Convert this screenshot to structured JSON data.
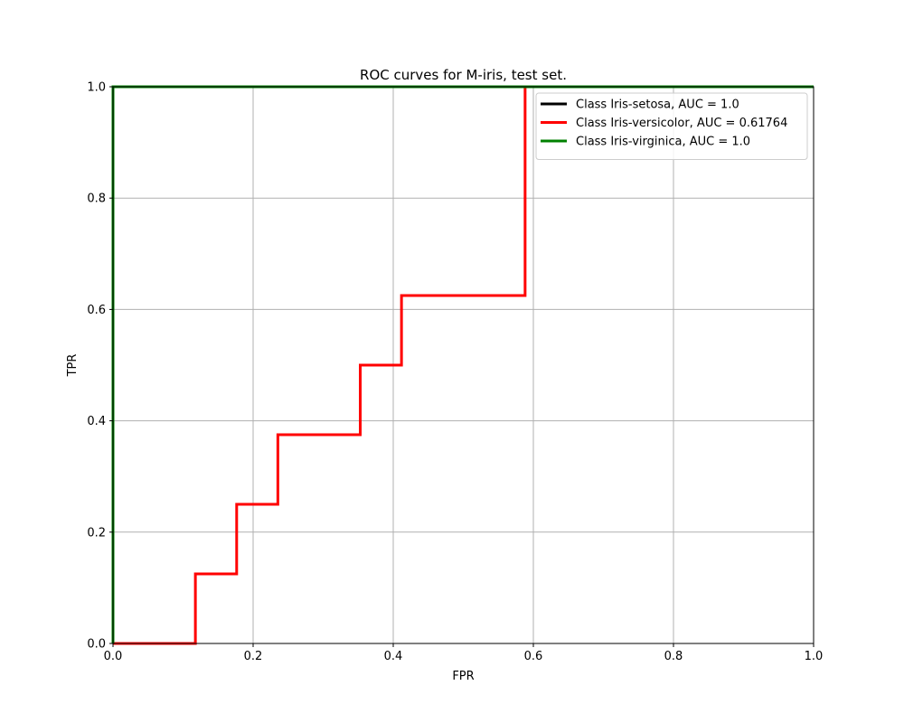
{
  "chart_data": {
    "type": "line",
    "title": "ROC curves for M-iris, test set.",
    "xlabel": "FPR",
    "ylabel": "TPR",
    "xlim": [
      0.0,
      1.0
    ],
    "ylim": [
      0.0,
      1.0
    ],
    "xticks": [
      "0.0",
      "0.2",
      "0.4",
      "0.6",
      "0.8",
      "1.0"
    ],
    "yticks": [
      "0.0",
      "0.2",
      "0.4",
      "0.6",
      "0.8",
      "1.0"
    ],
    "grid": true,
    "legend_position": "top-right",
    "series": [
      {
        "name": "Class Iris-setosa, AUC = 1.0",
        "color": "#000000",
        "x": [
          0.0,
          0.0,
          1.0
        ],
        "y": [
          0.0,
          1.0,
          1.0
        ]
      },
      {
        "name": "Class Iris-versicolor, AUC = 0.61764",
        "color": "#ff0000",
        "x": [
          0.0,
          0.1176,
          0.1176,
          0.1765,
          0.1765,
          0.2353,
          0.2353,
          0.3529,
          0.3529,
          0.4118,
          0.4118,
          0.5882,
          0.5882
        ],
        "y": [
          0.0,
          0.0,
          0.125,
          0.125,
          0.25,
          0.25,
          0.375,
          0.375,
          0.5,
          0.5,
          0.625,
          0.625,
          1.0
        ]
      },
      {
        "name": "Class Iris-virginica, AUC = 1.0",
        "color": "#008000",
        "x": [
          0.0,
          0.0,
          1.0
        ],
        "y": [
          0.0,
          1.0,
          1.0
        ]
      }
    ]
  }
}
